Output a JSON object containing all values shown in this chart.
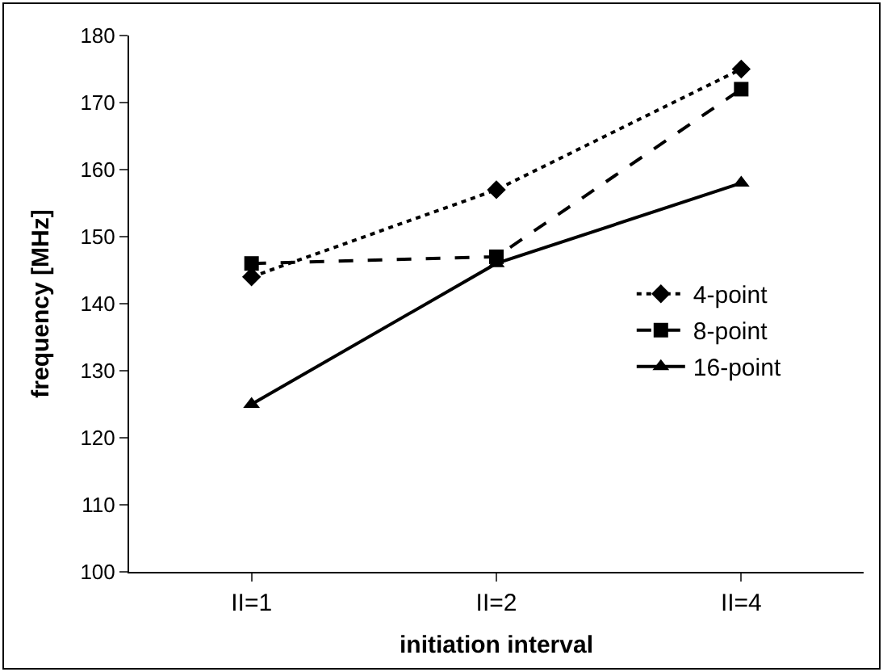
{
  "chart_data": {
    "type": "line",
    "xlabel": "initiation interval",
    "ylabel": "frequency [MHz]",
    "categories": [
      "II=1",
      "II=2",
      "II=4"
    ],
    "ylim": [
      100,
      180
    ],
    "yticks": [
      100,
      110,
      120,
      130,
      140,
      150,
      160,
      170,
      180
    ],
    "grid": false,
    "legend": "right",
    "series": [
      {
        "name": "4-point",
        "color": "#000000",
        "marker": "diamond",
        "line_style": "dotted",
        "values": [
          144,
          157,
          175
        ]
      },
      {
        "name": "8-point",
        "color": "#000000",
        "marker": "square",
        "line_style": "dashed",
        "values": [
          146,
          147,
          172
        ]
      },
      {
        "name": "16-point",
        "color": "#000000",
        "marker": "triangle",
        "line_style": "solid",
        "values": [
          125,
          146,
          158
        ]
      }
    ]
  }
}
